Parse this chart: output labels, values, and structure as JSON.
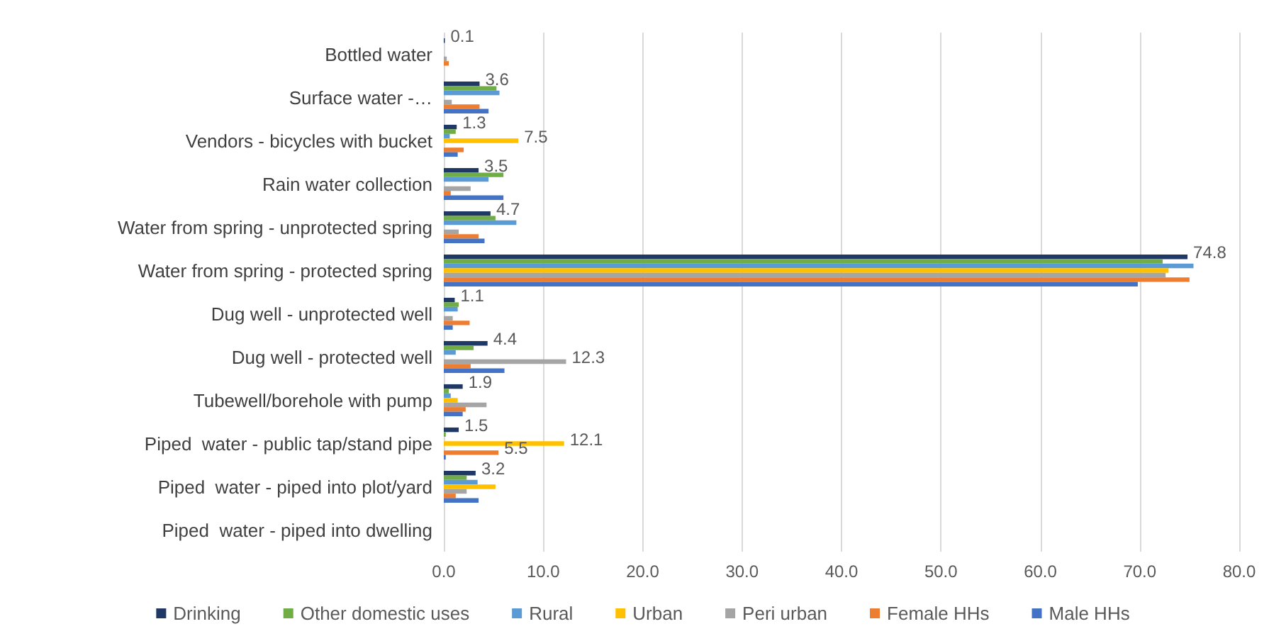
{
  "chart_data": {
    "type": "bar",
    "orientation": "horizontal",
    "categories": [
      "Bottled water",
      "Surface water -…",
      "Vendors - bicycles with bucket",
      "Rain water collection",
      "Water from spring - unprotected spring",
      "Water from spring - protected spring",
      "Dug well - unprotected well",
      "Dug well - protected well",
      "Tubewell/borehole with pump",
      "Piped  water - public tap/stand pipe",
      "Piped  water - piped into plot/yard",
      "Piped  water - piped into dwelling"
    ],
    "series": [
      {
        "name": "Drinking",
        "color": "#203864",
        "values": [
          0.1,
          3.6,
          1.3,
          3.5,
          4.7,
          74.8,
          1.1,
          4.4,
          1.9,
          1.5,
          3.2,
          null
        ],
        "value_labels": [
          "0.1",
          "3.6",
          "1.3",
          "3.5",
          "4.7",
          "74.8",
          "1.1",
          "4.4",
          "1.9",
          "1.5",
          "3.2",
          null
        ]
      },
      {
        "name": "Other domestic uses",
        "color": "#70ad47",
        "values": [
          null,
          5.3,
          1.2,
          6.0,
          5.2,
          72.3,
          1.5,
          3.0,
          0.5,
          0.2,
          2.3,
          null
        ]
      },
      {
        "name": "Rural",
        "color": "#5b9bd5",
        "values": [
          null,
          5.6,
          0.6,
          4.5,
          7.3,
          75.4,
          1.4,
          1.2,
          0.7,
          null,
          3.4,
          null
        ]
      },
      {
        "name": "Urban",
        "color": "#ffc000",
        "values": [
          null,
          0.0,
          7.5,
          null,
          null,
          72.9,
          null,
          0.0,
          1.4,
          12.1,
          5.2,
          null
        ],
        "value_labels": [
          null,
          null,
          "7.5",
          null,
          null,
          null,
          null,
          null,
          null,
          "12.1",
          null,
          null
        ]
      },
      {
        "name": "Peri urban",
        "color": "#a5a5a5",
        "values": [
          0.3,
          0.8,
          null,
          2.7,
          1.5,
          72.6,
          0.9,
          12.3,
          4.3,
          null,
          2.3,
          null
        ],
        "value_labels": [
          null,
          null,
          null,
          null,
          null,
          null,
          null,
          "12.3",
          null,
          null,
          null,
          null
        ]
      },
      {
        "name": "Female HHs",
        "color": "#ed7d31",
        "values": [
          0.5,
          3.6,
          2.0,
          0.7,
          3.5,
          75.0,
          2.6,
          2.7,
          2.2,
          5.5,
          1.2,
          null
        ],
        "value_labels": [
          null,
          null,
          null,
          null,
          null,
          null,
          null,
          null,
          null,
          "5.5",
          null,
          null
        ]
      },
      {
        "name": "Male HHs",
        "color": "#4472c4",
        "values": [
          null,
          4.5,
          1.4,
          6.0,
          4.1,
          69.8,
          0.9,
          6.1,
          1.9,
          0.2,
          3.5,
          null
        ]
      }
    ],
    "xlim": [
      0,
      80
    ],
    "xticks": [
      {
        "value": 0,
        "label": "0.0"
      },
      {
        "value": 10,
        "label": "10.0"
      },
      {
        "value": 20,
        "label": "20.0"
      },
      {
        "value": 30,
        "label": "30.0"
      },
      {
        "value": 40,
        "label": "40.0"
      },
      {
        "value": 50,
        "label": "50.0"
      },
      {
        "value": 60,
        "label": "60.0"
      },
      {
        "value": 70,
        "label": "70.0"
      },
      {
        "value": 80,
        "label": "80.0"
      }
    ],
    "grid": "x",
    "legend": "bottom"
  }
}
